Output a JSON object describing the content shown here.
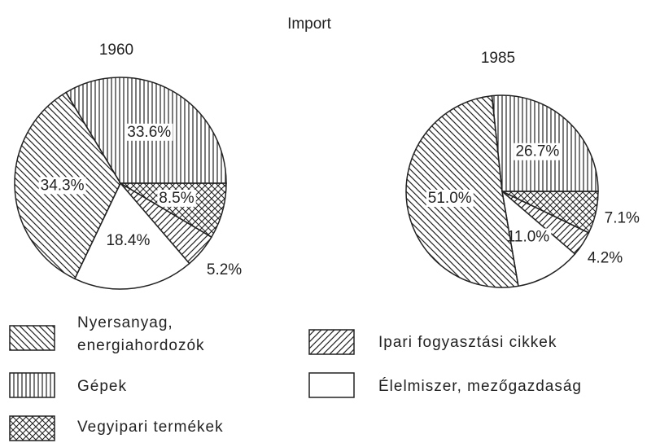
{
  "title": "Import",
  "chart_data": [
    {
      "type": "pie",
      "title": "1960",
      "categories": [
        "Gépek",
        "Vegyipari termékek",
        "Ipari fogyasztási cikkek",
        "Élelmiszer, mezőgazdaság",
        "Nyersanyag, energiahordozók"
      ],
      "values": [
        33.6,
        8.5,
        5.2,
        18.4,
        34.3
      ],
      "value_labels": [
        "33.6%",
        "8.5%",
        "5.2%",
        "18.4%",
        "34.3%"
      ],
      "hatches": [
        "vertical",
        "crosshatch",
        "diagonal-up",
        "none",
        "diagonal-down"
      ]
    },
    {
      "type": "pie",
      "title": "1985",
      "categories": [
        "Gépek",
        "Vegyipari termékek",
        "Ipari fogyasztási cikkek",
        "Élelmiszer, mezőgazdaság",
        "Nyersanyag, energiahordozók"
      ],
      "values": [
        26.7,
        7.1,
        4.2,
        11.0,
        51.0
      ],
      "value_labels": [
        "26.7%",
        "7.1%",
        "4.2%",
        "11.0%",
        "51.0%"
      ],
      "hatches": [
        "vertical",
        "crosshatch",
        "diagonal-up",
        "none",
        "diagonal-down"
      ]
    }
  ]
}
